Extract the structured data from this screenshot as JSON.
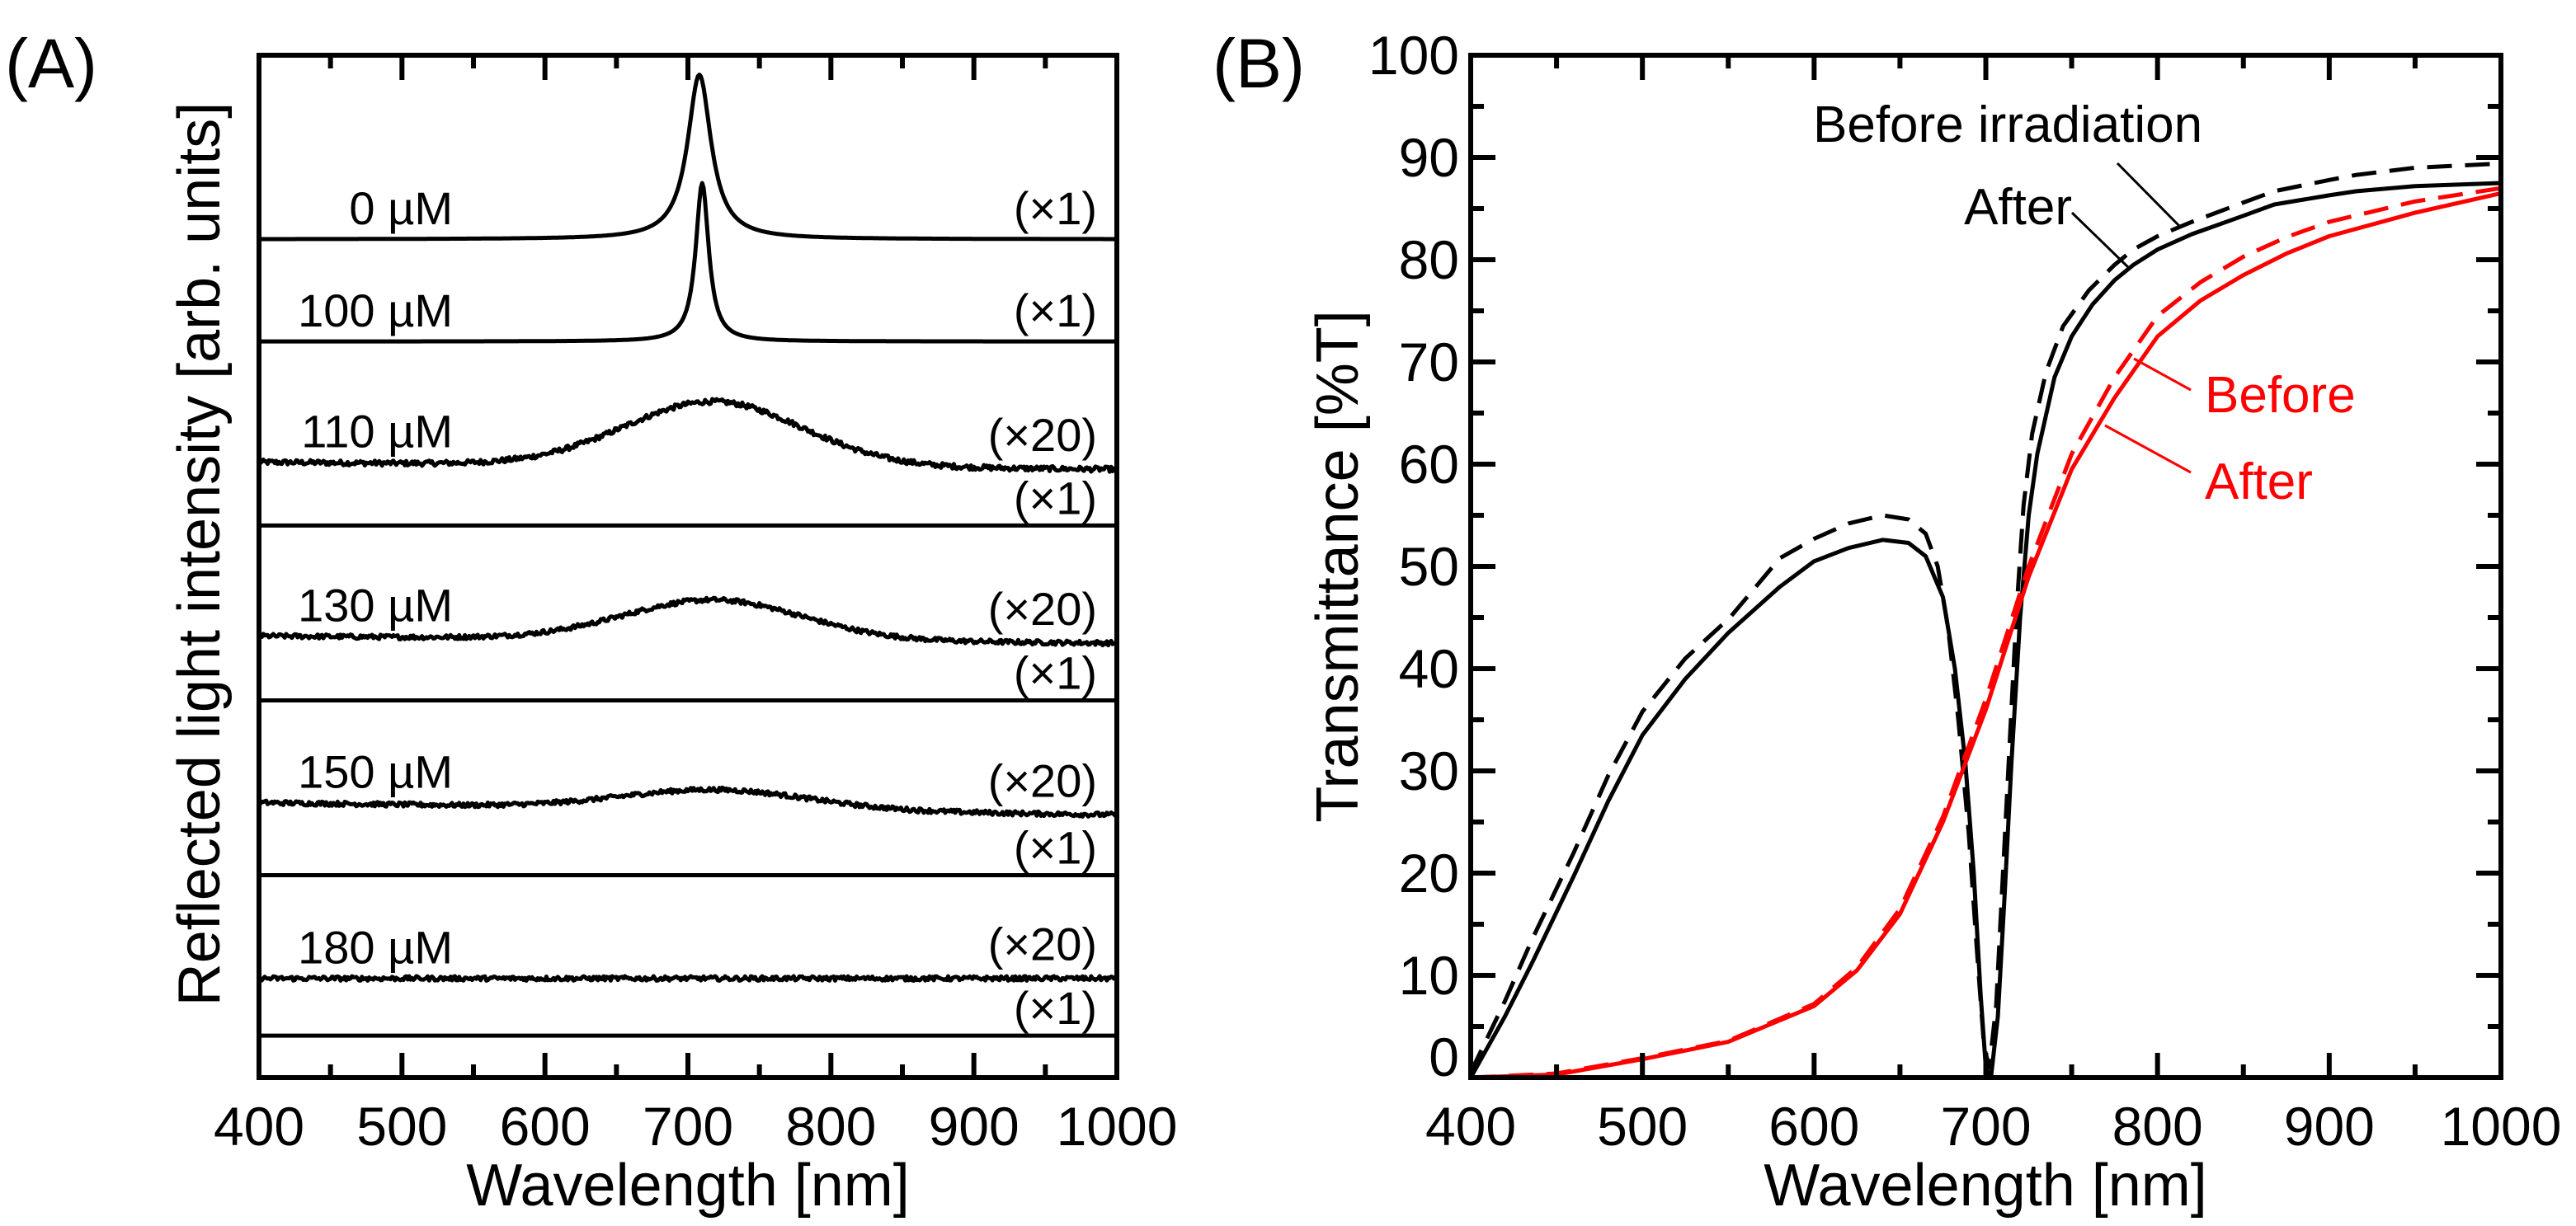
{
  "chart_data": [
    {
      "panel": "(A)",
      "type": "line",
      "xlabel": "Wavelength [nm]",
      "ylabel": "Reflected light intensity [arb. units]",
      "xlim": [
        400,
        1000
      ],
      "xticks": [
        400,
        500,
        600,
        700,
        800,
        900,
        1000
      ],
      "x_minor_step": 50,
      "ylim": [
        0,
        100
      ],
      "yticks_shown": false,
      "grid": false,
      "series": [
        {
          "label": "0 µM",
          "scale": "(×1)",
          "shape": "lorentz",
          "offset": 82.0,
          "peak_nm": 708,
          "amplitude": 16.1,
          "half_width_nm": 10,
          "noise": 0
        },
        {
          "label": "100 µM",
          "scale": "(×1)",
          "shape": "lorentz",
          "offset": 72.0,
          "peak_nm": 710,
          "amplitude": 15.5,
          "half_width_nm": 5.5,
          "noise": 0
        },
        {
          "label": "110 µM",
          "scale": "(×20)",
          "shape": "gauss",
          "offset": 60.2,
          "end_offset": 59.5,
          "peak_nm": 718,
          "amplitude": 6.3,
          "sigma_nm": 62,
          "noise": 0.25,
          "x1_scale": "(×1)",
          "x1_offset": 54.0
        },
        {
          "label": "130 µM",
          "scale": "(×20)",
          "shape": "gauss",
          "offset": 43.2,
          "end_offset": 42.5,
          "peak_nm": 718,
          "amplitude": 3.9,
          "sigma_nm": 62,
          "noise": 0.22,
          "x1_scale": "(×1)",
          "x1_offset": 36.9
        },
        {
          "label": "150 µM",
          "scale": "(×20)",
          "shape": "gauss",
          "offset": 26.9,
          "end_offset": 25.7,
          "peak_nm": 720,
          "amplitude": 1.9,
          "sigma_nm": 65,
          "noise": 0.22,
          "x1_scale": "(×1)",
          "x1_offset": 19.8
        },
        {
          "label": "180 µM",
          "scale": "(×20)",
          "shape": "flat",
          "offset": 9.7,
          "end_offset": 9.7,
          "peak_nm": 720,
          "amplitude": 0,
          "sigma_nm": 60,
          "noise": 0.22,
          "x1_scale": "(×1)",
          "x1_offset": 4.1
        }
      ]
    },
    {
      "panel": "(B)",
      "type": "line",
      "xlabel": "Wavelength [nm]",
      "ylabel": "Transmittance [%T]",
      "xlim": [
        400,
        1000
      ],
      "ylim": [
        0,
        100
      ],
      "xticks": [
        400,
        500,
        600,
        700,
        800,
        900,
        1000
      ],
      "yticks": [
        0,
        10,
        20,
        30,
        40,
        50,
        60,
        70,
        80,
        90,
        100
      ],
      "x_minor_step": 50,
      "y_minor_step": 5,
      "grid": false,
      "annotations": {
        "black_before": "Before irradiation",
        "black_after": "After",
        "red_before": "Before",
        "red_after": "After"
      },
      "colors": {
        "black": "#000000",
        "red": "#ff0000"
      },
      "series": [
        {
          "name": "Before irradiation",
          "color": "#000000",
          "dash": true,
          "points": [
            [
              400,
              0.5
            ],
            [
              410,
              4
            ],
            [
              420,
              7.5
            ],
            [
              436,
              13.6
            ],
            [
              460,
              22
            ],
            [
              480,
              29.5
            ],
            [
              500,
              35.8
            ],
            [
              525,
              41
            ],
            [
              551,
              45
            ],
            [
              580,
              50.8
            ],
            [
              600,
              52.7
            ],
            [
              620,
              54.2
            ],
            [
              640,
              55
            ],
            [
              655,
              54.6
            ],
            [
              665,
              53.2
            ],
            [
              672,
              50
            ],
            [
              678,
              44
            ],
            [
              684,
              35
            ],
            [
              690,
              24
            ],
            [
              695,
              12
            ],
            [
              699,
              3
            ],
            [
              702,
              1
            ],
            [
              706,
              7
            ],
            [
              710,
              20
            ],
            [
              714,
              33
            ],
            [
              718,
              46
            ],
            [
              722,
              56
            ],
            [
              727,
              63
            ],
            [
              735,
              69
            ],
            [
              745,
              73.5
            ],
            [
              760,
              77
            ],
            [
              775,
              79.5
            ],
            [
              786,
              81
            ],
            [
              800,
              82.3
            ],
            [
              820,
              83.7
            ],
            [
              850,
              85.6
            ],
            [
              868,
              86.7
            ],
            [
              900,
              87.8
            ],
            [
              916,
              88.3
            ],
            [
              950,
              89
            ],
            [
              1000,
              89.4
            ]
          ]
        },
        {
          "name": "After",
          "color": "#000000",
          "dash": false,
          "points": [
            [
              400,
              0
            ],
            [
              410,
              3
            ],
            [
              420,
              6
            ],
            [
              436,
              11.3
            ],
            [
              460,
              19.7
            ],
            [
              480,
              27
            ],
            [
              500,
              33.5
            ],
            [
              525,
              39
            ],
            [
              550,
              43.5
            ],
            [
              580,
              48
            ],
            [
              600,
              50.5
            ],
            [
              620,
              51.8
            ],
            [
              640,
              52.6
            ],
            [
              655,
              52.3
            ],
            [
              665,
              51
            ],
            [
              675,
              47
            ],
            [
              682,
              40
            ],
            [
              688,
              31
            ],
            [
              693,
              20
            ],
            [
              697,
              8
            ],
            [
              700,
              1
            ],
            [
              703,
              0
            ],
            [
              707,
              6
            ],
            [
              711,
              18
            ],
            [
              715,
              31
            ],
            [
              720,
              45
            ],
            [
              725,
              55
            ],
            [
              730,
              61
            ],
            [
              740,
              68.5
            ],
            [
              750,
              72.5
            ],
            [
              762,
              75.6
            ],
            [
              775,
              78
            ],
            [
              786,
              79.5
            ],
            [
              800,
              81
            ],
            [
              820,
              82.5
            ],
            [
              850,
              84.3
            ],
            [
              868,
              85.4
            ],
            [
              900,
              86.3
            ],
            [
              916,
              86.7
            ],
            [
              950,
              87.2
            ],
            [
              1000,
              87.5
            ]
          ]
        },
        {
          "name": "Before",
          "color": "#ff0000",
          "dash": true,
          "points": [
            [
              400,
              0
            ],
            [
              450,
              0.4
            ],
            [
              500,
              1.9
            ],
            [
              550,
              3.6
            ],
            [
              600,
              7.2
            ],
            [
              625,
              10.8
            ],
            [
              650,
              16.5
            ],
            [
              675,
              25.5
            ],
            [
              700,
              37
            ],
            [
              725,
              50
            ],
            [
              750,
              61
            ],
            [
              775,
              68.5
            ],
            [
              800,
              74.5
            ],
            [
              825,
              77.8
            ],
            [
              850,
              80.3
            ],
            [
              875,
              82.2
            ],
            [
              900,
              83.7
            ],
            [
              950,
              85.7
            ],
            [
              1000,
              87
            ]
          ]
        },
        {
          "name": "After",
          "color": "#ff0000",
          "dash": false,
          "points": [
            [
              400,
              0
            ],
            [
              450,
              0.3
            ],
            [
              500,
              1.8
            ],
            [
              550,
              3.5
            ],
            [
              600,
              7
            ],
            [
              625,
              10.5
            ],
            [
              650,
              16
            ],
            [
              675,
              25
            ],
            [
              700,
              36
            ],
            [
              725,
              49
            ],
            [
              750,
              59.5
            ],
            [
              775,
              66.5
            ],
            [
              800,
              72.5
            ],
            [
              825,
              76
            ],
            [
              850,
              78.5
            ],
            [
              875,
              80.6
            ],
            [
              900,
              82.3
            ],
            [
              950,
              84.6
            ],
            [
              1000,
              86.5
            ]
          ]
        }
      ]
    }
  ]
}
